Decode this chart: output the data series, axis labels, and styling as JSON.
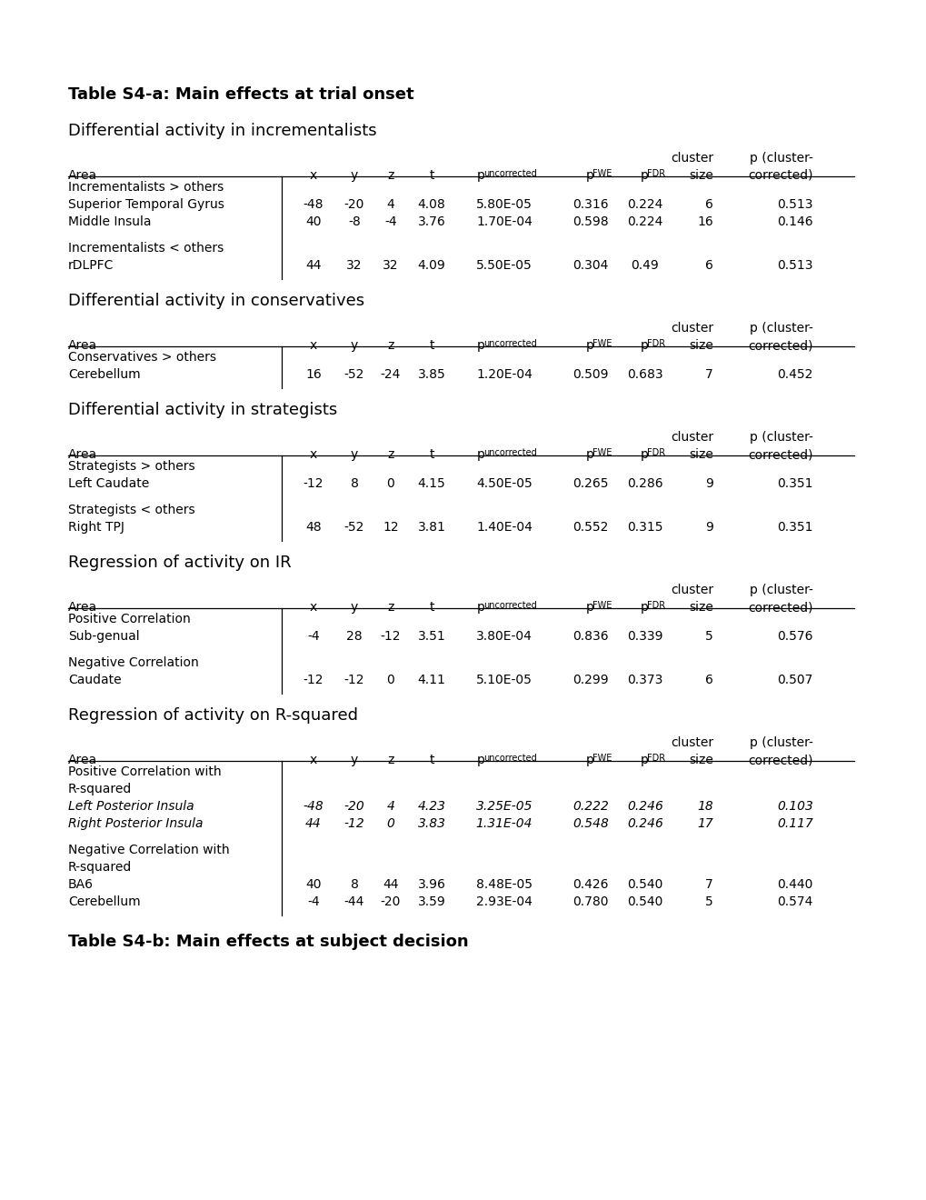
{
  "title_a": "Table S4-a: Main effects at trial onset",
  "title_b": "Table S4-b: Main effects at subject decision",
  "background_color": "#ffffff",
  "sections": [
    {
      "heading": "Differential activity in incrementalists",
      "groups": [
        {
          "label": "Incrementalists > others",
          "rows": [
            {
              "area": "Superior Temporal Gyrus",
              "x": "-48",
              "y": "-20",
              "z": "4",
              "t": "4.08",
              "punc": "5.80E-05",
              "pfwe": "0.316",
              "pfdr": "0.224",
              "cs": "6",
              "pc": "0.513",
              "italic": false
            },
            {
              "area": "Middle Insula",
              "x": "40",
              "y": "-8",
              "z": "-4",
              "t": "3.76",
              "punc": "1.70E-04",
              "pfwe": "0.598",
              "pfdr": "0.224",
              "cs": "16",
              "pc": "0.146",
              "italic": false
            }
          ]
        },
        {
          "label": "Incrementalists < others",
          "rows": [
            {
              "area": "rDLPFC",
              "x": "44",
              "y": "32",
              "z": "32",
              "t": "4.09",
              "punc": "5.50E-05",
              "pfwe": "0.304",
              "pfdr": "0.49",
              "cs": "6",
              "pc": "0.513",
              "italic": false
            }
          ]
        }
      ]
    },
    {
      "heading": "Differential activity in conservatives",
      "groups": [
        {
          "label": "Conservatives > others",
          "rows": [
            {
              "area": "Cerebellum",
              "x": "16",
              "y": "-52",
              "z": "-24",
              "t": "3.85",
              "punc": "1.20E-04",
              "pfwe": "0.509",
              "pfdr": "0.683",
              "cs": "7",
              "pc": "0.452",
              "italic": false
            }
          ]
        }
      ]
    },
    {
      "heading": "Differential activity in strategists",
      "groups": [
        {
          "label": "Strategists > others",
          "rows": [
            {
              "area": "Left Caudate",
              "x": "-12",
              "y": "8",
              "z": "0",
              "t": "4.15",
              "punc": "4.50E-05",
              "pfwe": "0.265",
              "pfdr": "0.286",
              "cs": "9",
              "pc": "0.351",
              "italic": false
            }
          ]
        },
        {
          "label": "Strategists < others",
          "rows": [
            {
              "area": "Right TPJ",
              "x": "48",
              "y": "-52",
              "z": "12",
              "t": "3.81",
              "punc": "1.40E-04",
              "pfwe": "0.552",
              "pfdr": "0.315",
              "cs": "9",
              "pc": "0.351",
              "italic": false
            }
          ]
        }
      ]
    },
    {
      "heading": "Regression of activity on IR",
      "groups": [
        {
          "label": "Positive Correlation",
          "rows": [
            {
              "area": "Sub-genual",
              "x": "-4",
              "y": "28",
              "z": "-12",
              "t": "3.51",
              "punc": "3.80E-04",
              "pfwe": "0.836",
              "pfdr": "0.339",
              "cs": "5",
              "pc": "0.576",
              "italic": false
            }
          ]
        },
        {
          "label": "Negative Correlation",
          "rows": [
            {
              "area": "Caudate",
              "x": "-12",
              "y": "-12",
              "z": "0",
              "t": "4.11",
              "punc": "5.10E-05",
              "pfwe": "0.299",
              "pfdr": "0.373",
              "cs": "6",
              "pc": "0.507",
              "italic": false
            }
          ]
        }
      ]
    },
    {
      "heading": "Regression of activity on R-squared",
      "groups": [
        {
          "label": "Positive Correlation with\nR-squared",
          "rows": [
            {
              "area": "Left Posterior Insula",
              "x": "-48",
              "y": "-20",
              "z": "4",
              "t": "4.23",
              "punc": "3.25E-05",
              "pfwe": "0.222",
              "pfdr": "0.246",
              "cs": "18",
              "pc": "0.103",
              "italic": true
            },
            {
              "area": "Right Posterior Insula",
              "x": "44",
              "y": "-12",
              "z": "0",
              "t": "3.83",
              "punc": "1.31E-04",
              "pfwe": "0.548",
              "pfdr": "0.246",
              "cs": "17",
              "pc": "0.117",
              "italic": true
            }
          ]
        },
        {
          "label": "Negative Correlation with\nR-squared",
          "rows": [
            {
              "area": "BA6",
              "x": "40",
              "y": "8",
              "z": "44",
              "t": "3.96",
              "punc": "8.48E-05",
              "pfwe": "0.426",
              "pfdr": "0.540",
              "cs": "7",
              "pc": "0.440",
              "italic": false
            },
            {
              "area": "Cerebellum",
              "x": "-4",
              "y": "-44",
              "z": "-20",
              "t": "3.59",
              "punc": "2.93E-04",
              "pfwe": "0.780",
              "pfdr": "0.540",
              "cs": "5",
              "pc": "0.574",
              "italic": false
            }
          ]
        }
      ]
    }
  ]
}
